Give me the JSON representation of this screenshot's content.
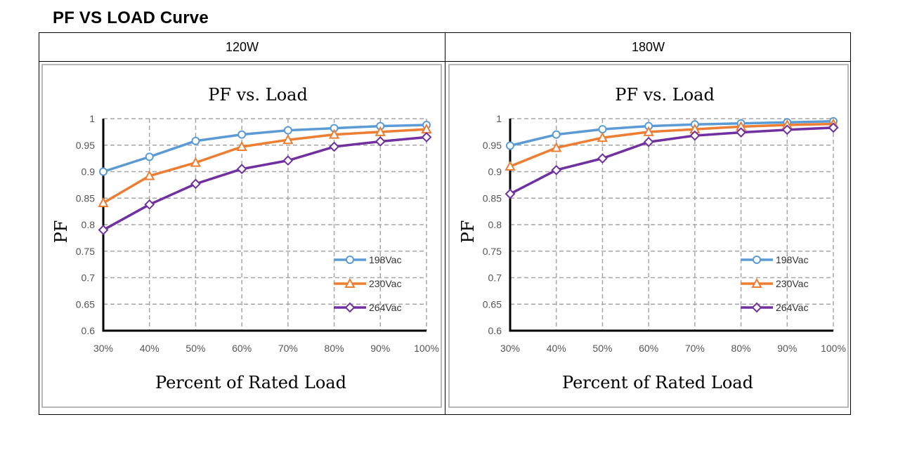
{
  "page": {
    "heading": "PF VS LOAD Curve",
    "columns": [
      "120W",
      "180W"
    ]
  },
  "colors": {
    "198Vac": "#5b9bd5",
    "230Vac": "#ed7d31",
    "264Vac": "#7030a0",
    "grid": "#a6a6a6",
    "axis": "#000000"
  },
  "chart_data": [
    {
      "type": "line",
      "panel": "120W",
      "title": "PF vs. Load",
      "xlabel": "Percent of Rated Load",
      "ylabel": "PF",
      "categories": [
        "30%",
        "40%",
        "50%",
        "60%",
        "70%",
        "80%",
        "90%",
        "100%"
      ],
      "ylim": [
        0.6,
        1
      ],
      "yticks": [
        "0.6",
        "0.65",
        "0.7",
        "0.75",
        "0.8",
        "0.85",
        "0.9",
        "0.95",
        "1"
      ],
      "grid": true,
      "legend_position": "bottom-right",
      "series": [
        {
          "name": "198Vac",
          "marker": "circle",
          "values": [
            0.9,
            0.928,
            0.958,
            0.97,
            0.978,
            0.982,
            0.986,
            0.988
          ]
        },
        {
          "name": "230Vac",
          "marker": "triangle",
          "values": [
            0.841,
            0.892,
            0.917,
            0.947,
            0.96,
            0.97,
            0.975,
            0.98
          ]
        },
        {
          "name": "264Vac",
          "marker": "diamond",
          "values": [
            0.79,
            0.838,
            0.877,
            0.905,
            0.921,
            0.947,
            0.957,
            0.965
          ]
        }
      ]
    },
    {
      "type": "line",
      "panel": "180W",
      "title": "PF vs. Load",
      "xlabel": "Percent of Rated Load",
      "ylabel": "PF",
      "categories": [
        "30%",
        "40%",
        "50%",
        "60%",
        "70%",
        "80%",
        "90%",
        "100%"
      ],
      "ylim": [
        0.6,
        1
      ],
      "yticks": [
        "0.6",
        "0.65",
        "0.7",
        "0.75",
        "0.8",
        "0.85",
        "0.9",
        "0.95",
        "1"
      ],
      "grid": true,
      "legend_position": "bottom-right",
      "series": [
        {
          "name": "198Vac",
          "marker": "circle",
          "values": [
            0.949,
            0.97,
            0.98,
            0.986,
            0.989,
            0.991,
            0.993,
            0.995
          ]
        },
        {
          "name": "230Vac",
          "marker": "triangle",
          "values": [
            0.91,
            0.945,
            0.964,
            0.975,
            0.98,
            0.985,
            0.988,
            0.99
          ]
        },
        {
          "name": "264Vac",
          "marker": "diamond",
          "values": [
            0.858,
            0.903,
            0.925,
            0.956,
            0.968,
            0.974,
            0.979,
            0.983
          ]
        }
      ]
    }
  ]
}
